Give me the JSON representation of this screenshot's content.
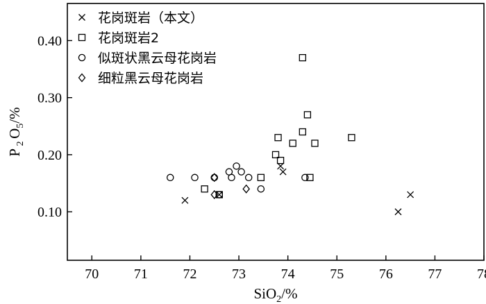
{
  "chart_data": {
    "type": "scatter",
    "title": "",
    "xlabel": "SiO2/%",
    "ylabel": "P2O5/%",
    "xlim": [
      69.5,
      78
    ],
    "ylim": [
      0.015,
      0.465
    ],
    "xticks": [
      70,
      71,
      72,
      73,
      74,
      75,
      76,
      77,
      78
    ],
    "yticks": [
      0.1,
      0.2,
      0.3,
      0.4
    ],
    "ytick_labels": [
      "0.10",
      "0.20",
      "0.30",
      "0.40"
    ],
    "grid": false,
    "legend_position": "top-left",
    "series": [
      {
        "name": "花岗斑岩（本文）",
        "marker": "x",
        "points": [
          [
            71.9,
            0.12
          ],
          [
            72.6,
            0.13
          ],
          [
            73.85,
            0.18
          ],
          [
            73.9,
            0.17
          ],
          [
            76.25,
            0.1
          ],
          [
            76.5,
            0.13
          ]
        ]
      },
      {
        "name": "花岗斑岩2",
        "marker": "square",
        "points": [
          [
            74.3,
            0.37
          ],
          [
            74.4,
            0.27
          ],
          [
            74.3,
            0.24
          ],
          [
            73.8,
            0.23
          ],
          [
            75.3,
            0.23
          ],
          [
            74.1,
            0.22
          ],
          [
            74.55,
            0.22
          ],
          [
            73.75,
            0.2
          ],
          [
            73.85,
            0.19
          ],
          [
            73.45,
            0.16
          ],
          [
            74.45,
            0.16
          ],
          [
            72.3,
            0.14
          ],
          [
            72.6,
            0.13
          ]
        ]
      },
      {
        "name": "似斑状黑云母花岗岩",
        "marker": "circle",
        "points": [
          [
            71.6,
            0.16
          ],
          [
            72.1,
            0.16
          ],
          [
            72.5,
            0.16
          ],
          [
            72.8,
            0.17
          ],
          [
            72.95,
            0.18
          ],
          [
            73.05,
            0.17
          ],
          [
            72.85,
            0.16
          ],
          [
            73.2,
            0.16
          ],
          [
            74.35,
            0.16
          ],
          [
            73.45,
            0.14
          ],
          [
            72.6,
            0.13
          ]
        ]
      },
      {
        "name": "细粒黑云母花岗岩",
        "marker": "diamond",
        "points": [
          [
            72.5,
            0.16
          ],
          [
            73.15,
            0.14
          ],
          [
            72.5,
            0.13
          ]
        ]
      }
    ]
  }
}
